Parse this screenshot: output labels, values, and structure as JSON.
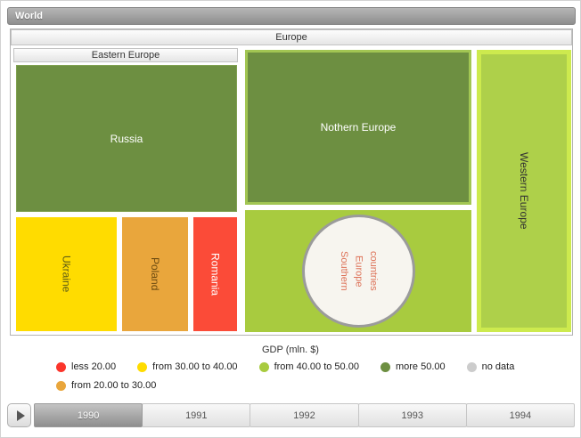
{
  "root_header": {
    "label": "World"
  },
  "treemap": {
    "europe": {
      "label": "Europe"
    },
    "eastern": {
      "label": "Eastern Europe"
    },
    "blocks": {
      "russia": {
        "label": "Russia",
        "color": "#6d8f41"
      },
      "ukraine": {
        "label": "Ukraine",
        "color": "#ffdc00"
      },
      "poland": {
        "label": "Poland",
        "color": "#e9a63c"
      },
      "romania": {
        "label": "Romania",
        "color": "#fb4b38"
      },
      "northern": {
        "label": "Nothern Europe",
        "color": "#6d8f41",
        "border_color": "#a2c653"
      },
      "southern": {
        "label": "Southern Europe countries",
        "color": "#a8cb3f",
        "circle_color": "#f7f5ef"
      },
      "western": {
        "label": "Western Europe",
        "color": "#aed04a",
        "border_color": "#cdea4e"
      }
    }
  },
  "legend": {
    "title": "GDP (mln. $)",
    "items": [
      {
        "label": "less 20.00",
        "color": "#fb352b"
      },
      {
        "label": "from 30.00 to 40.00",
        "color": "#ffdc00"
      },
      {
        "label": "from 40.00 to 50.00",
        "color": "#a8cb3f"
      },
      {
        "label": "more 50.00",
        "color": "#6d8f41"
      },
      {
        "label": "no data",
        "color": "#cccccc"
      },
      {
        "label": "from 20.00 to 30.00",
        "color": "#e9a63c"
      }
    ]
  },
  "timeline": {
    "years": [
      "1990",
      "1991",
      "1992",
      "1993",
      "1994"
    ],
    "selected": "1990"
  },
  "chart_data": {
    "type": "heatmap",
    "variant": "treemap-drilldown",
    "title": "GDP (mln. $)",
    "breadcrumb": "World",
    "root": "Europe",
    "groups": [
      {
        "name": "Eastern Europe",
        "children": [
          {
            "name": "Russia",
            "gdp_bin": "more 50.00"
          },
          {
            "name": "Ukraine",
            "gdp_bin": "from 30.00 to 40.00"
          },
          {
            "name": "Poland",
            "gdp_bin": "from 20.00 to 30.00"
          },
          {
            "name": "Romania",
            "gdp_bin": "less 20.00"
          }
        ]
      },
      {
        "name": "Nothern Europe",
        "gdp_bin": "more 50.00"
      },
      {
        "name": "Southern Europe countries",
        "gdp_bin": "from 40.00 to 50.00"
      },
      {
        "name": "Western Europe",
        "gdp_bin": "from 40.00 to 50.00"
      }
    ],
    "legend_bins": [
      {
        "label": "less 20.00",
        "color": "#fb352b"
      },
      {
        "label": "from 20.00 to 30.00",
        "color": "#e9a63c"
      },
      {
        "label": "from 30.00 to 40.00",
        "color": "#ffdc00"
      },
      {
        "label": "from 40.00 to 50.00",
        "color": "#a8cb3f"
      },
      {
        "label": "more 50.00",
        "color": "#6d8f41"
      },
      {
        "label": "no data",
        "color": "#cccccc"
      }
    ],
    "legend_position": "bottom",
    "timeline_years": [
      "1990",
      "1991",
      "1992",
      "1993",
      "1994"
    ],
    "selected_year": "1990"
  }
}
